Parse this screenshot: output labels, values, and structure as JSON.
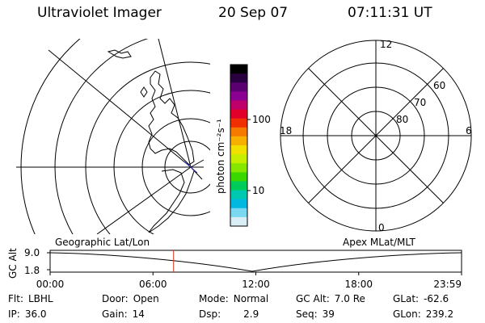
{
  "header": {
    "instrument": "Ultraviolet Imager",
    "date": "20 Sep 07",
    "time": "07:11:31 UT"
  },
  "colorbar": {
    "unit_label": "photon cm⁻²s⁻¹",
    "tick_labels": [
      "100",
      "10"
    ],
    "colors": [
      "#000000",
      "#2a0040",
      "#5a0070",
      "#8a0090",
      "#c0006a",
      "#e0002a",
      "#f03000",
      "#f67a00",
      "#f6b000",
      "#f0e000",
      "#c6ee00",
      "#86e800",
      "#3ad800",
      "#00cc5a",
      "#00c8b0",
      "#00b8e0",
      "#7ad8f0",
      "#d8eef4"
    ]
  },
  "polar_plot": {
    "mlt_labels": {
      "top": "12",
      "left": "18",
      "right": "6",
      "bottom": "0"
    },
    "lat_labels": [
      "60",
      "70",
      "80"
    ]
  },
  "timeline": {
    "y_axis_label": "GC Alt",
    "y_ticks": [
      "9.0",
      "1.8"
    ],
    "left_title": "Geographic Lat/Lon",
    "right_title": "Apex MLat/MLT",
    "x_ticks": [
      "00:00",
      "06:00",
      "12:00",
      "18:00",
      "23:59"
    ],
    "current_time_fraction": 0.3
  },
  "status": {
    "flt": {
      "key": "Flt:",
      "value": "LBHL"
    },
    "ip": {
      "key": "IP:",
      "value": "36.0"
    },
    "door": {
      "key": "Door:",
      "value": "Open"
    },
    "gain": {
      "key": "Gain:",
      "value": "14"
    },
    "mode": {
      "key": "Mode:",
      "value": "Normal"
    },
    "dsp": {
      "key": "Dsp:",
      "value": "2.9"
    },
    "gc_alt": {
      "key": "GC Alt:",
      "value": "7.0 Re"
    },
    "seq": {
      "key": "Seq:",
      "value": "39"
    },
    "glat": {
      "key": "GLat:",
      "value": "-62.6"
    },
    "glon": {
      "key": "GLon:",
      "value": "239.2"
    }
  }
}
